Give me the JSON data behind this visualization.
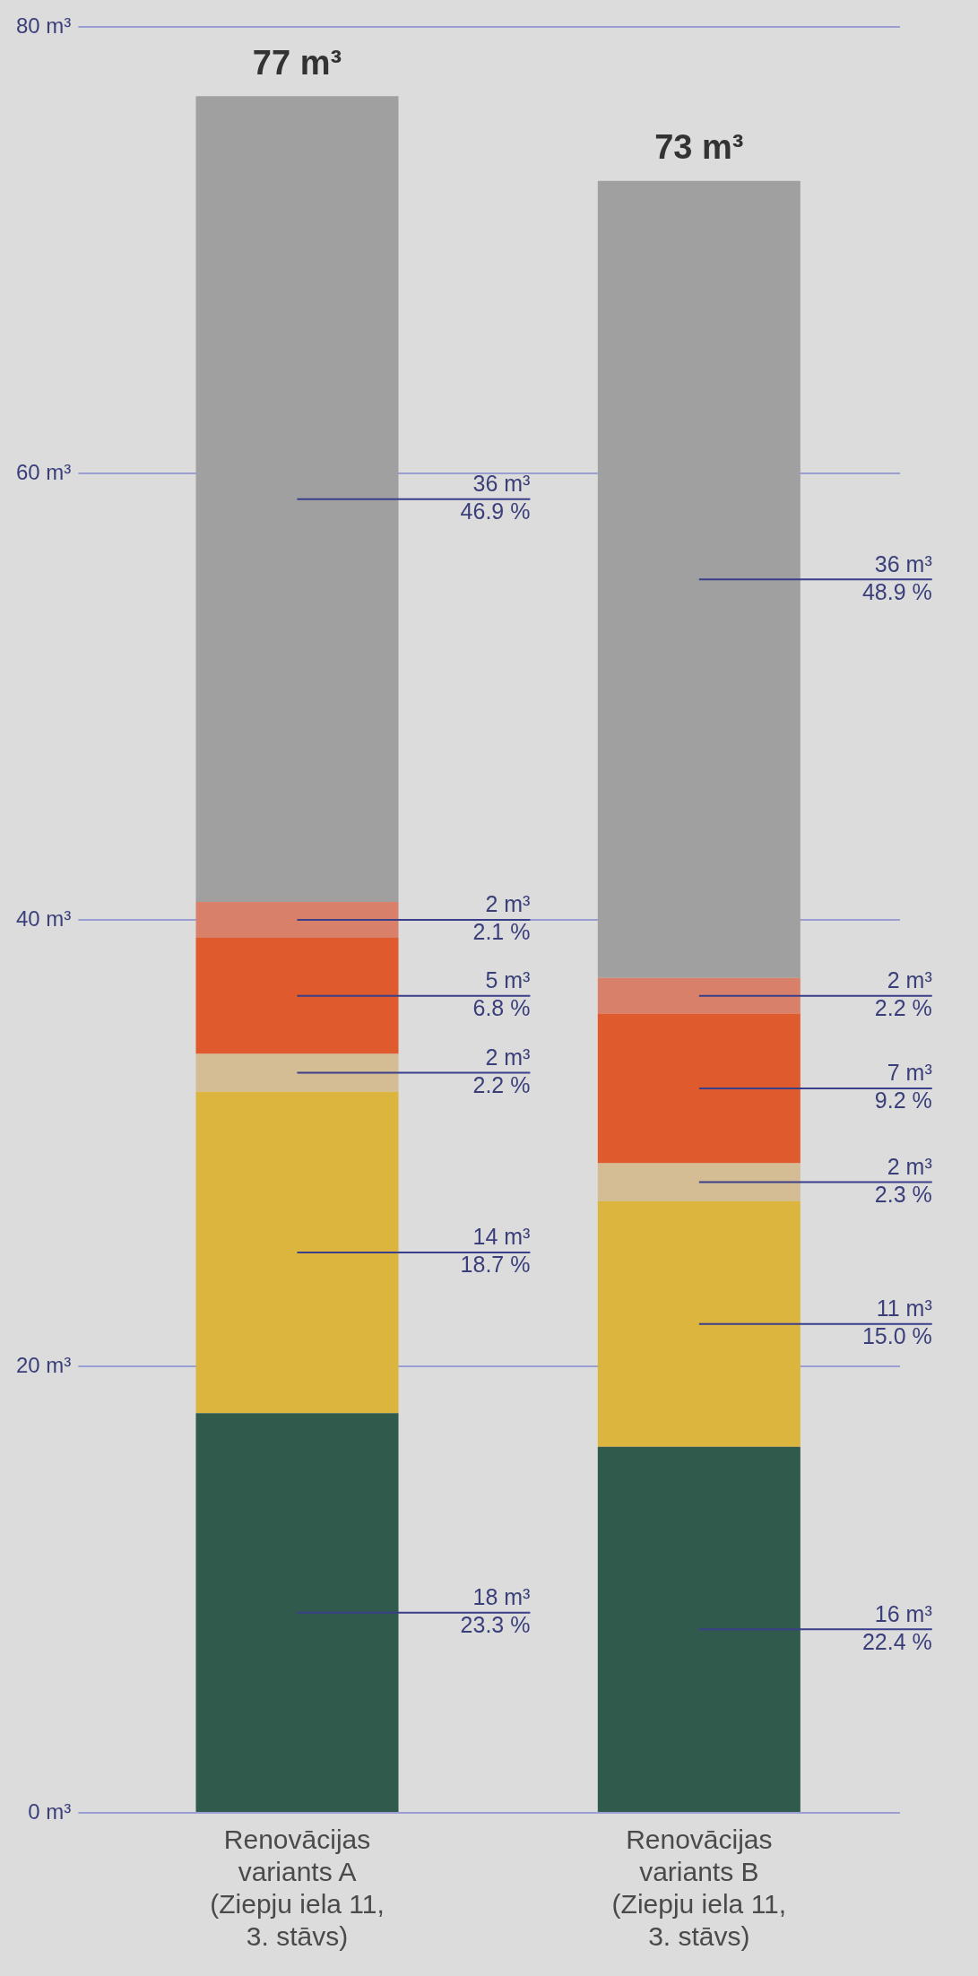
{
  "chart_data": {
    "type": "bar",
    "stacked": true,
    "categories": [
      "Renovācijas variants A (Ziepju iela 11, 3. stāvs)",
      "Renovācijas variants B (Ziepju iela 11, 3. stāvs)"
    ],
    "series": [
      {
        "color": "#2f5a4c",
        "values": [
          17.9,
          16.4
        ],
        "value_labels": [
          "18 m³\n23.3 %",
          "16 m³\n22.4 %"
        ]
      },
      {
        "color": "#dcb53e",
        "values": [
          14.4,
          11.0
        ],
        "value_labels": [
          "14 m³\n18.7 %",
          "11 m³\n15.0 %"
        ]
      },
      {
        "color": "#d4bc94",
        "values": [
          1.7,
          1.7
        ],
        "value_labels": [
          "2 m³\n2.2 %",
          "2 m³\n2.3 %"
        ]
      },
      {
        "color": "#df5a2c",
        "values": [
          5.2,
          6.7
        ],
        "value_labels": [
          "5 m³\n6.8 %",
          "7 m³\n9.2 %"
        ]
      },
      {
        "color": "#d9806a",
        "values": [
          1.6,
          1.6
        ],
        "value_labels": [
          "2 m³\n2.1 %",
          "2 m³\n2.2 %"
        ]
      },
      {
        "color": "#a0a0a0",
        "values": [
          36.1,
          35.7
        ],
        "value_labels": [
          "36 m³\n46.9 %",
          "36 m³\n48.9 %"
        ]
      }
    ],
    "totals": [
      "77 m³",
      "73 m³"
    ],
    "ylim": [
      0,
      80
    ],
    "yticks": [
      {
        "value": 0,
        "label": "0 m³"
      },
      {
        "value": 20,
        "label": "20 m³"
      },
      {
        "value": 40,
        "label": "40 m³"
      },
      {
        "value": 60,
        "label": "60 m³"
      },
      {
        "value": 80,
        "label": "80 m³"
      }
    ],
    "grid": "y"
  }
}
